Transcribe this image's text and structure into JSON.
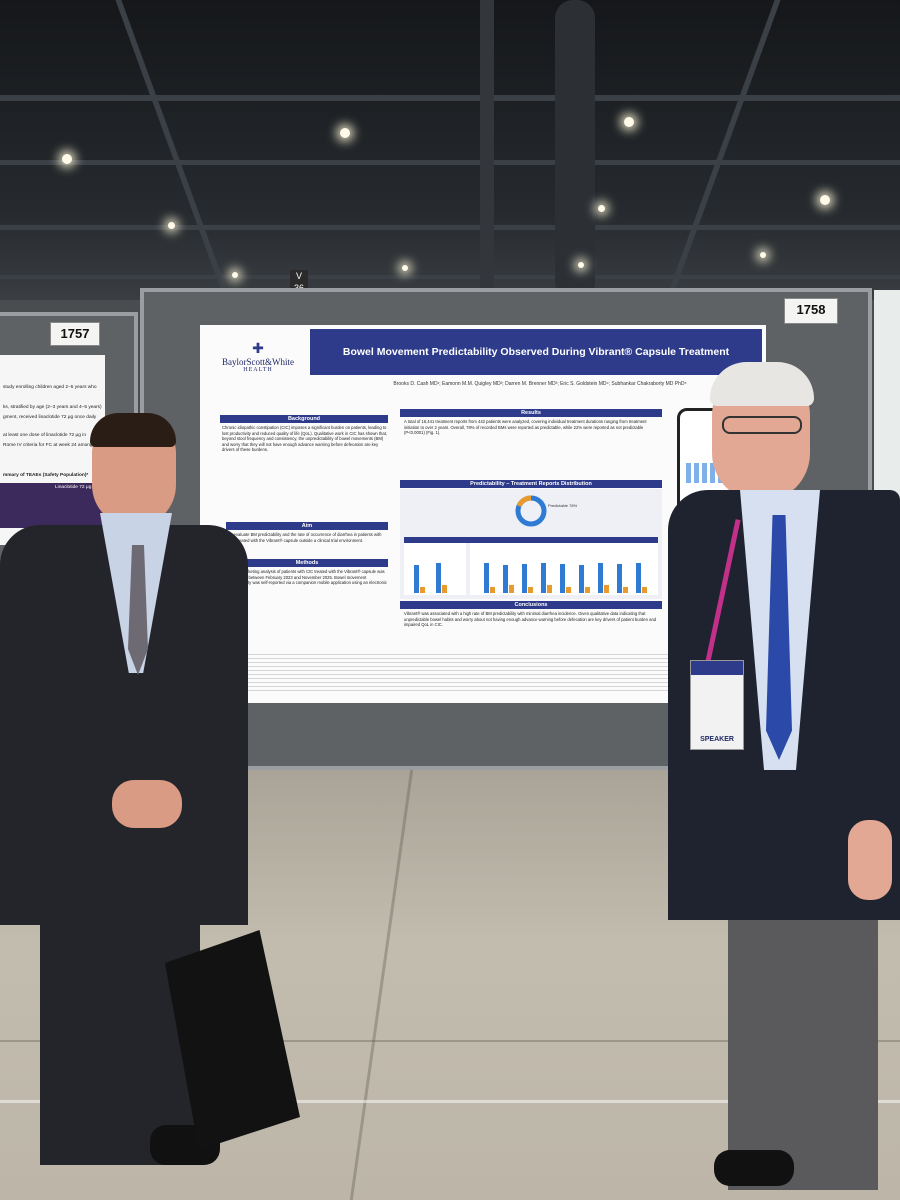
{
  "booth_numbers": {
    "left": "1757",
    "right": "1758"
  },
  "aisle_sign": "V 36",
  "poster": {
    "title": "Bowel Movement Predictability Observed During Vibrant® Capsule Treatment",
    "logo_line1": "BaylorScott&White",
    "logo_line2": "HEALTH",
    "authors": "Brooks D. Cash MD¹; Eamonn M.M. Quigley MD²; Darren M. Brenner MD³; Eric S. Goldstein MD⁴; Subhankar Chakraborty MD PhD⁵",
    "background_heading": "Background",
    "aim_heading": "Aim",
    "methods_heading": "Methods",
    "results_heading": "Results",
    "chart_heading": "Predictability – Treatment Reports Distribution",
    "conclusions_heading": "Conclusions",
    "background_text": "Chronic idiopathic constipation (CIC) imposes a significant burden on patients, leading to lost productivity and reduced quality of life (QoL). Qualitative work in CIC has shown that, beyond stool frequency and consistency, the unpredictability of bowel movements (BM) and worry that they will not have enough advance warning before defecation are key drivers of these burdens.",
    "aim_text": "To evaluate BM predictability and the rate of occurrence of diarrhea in patients with CIC treated with the Vibrant® capsule outside a clinical trial environment.",
    "methods_text": "A post-marketing analysis of patients with CIC treated with the Vibrant® capsule was conducted between February 2023 and November 2025. Bowel movement predictability was self-reported via a companion mobile application using an electronic stool diary.",
    "results_text": "A total of 16,441 treatment reports from 442 patients were analyzed, covering individual treatment durations ranging from treatment initiation to over 2 years. Overall, 78% of recorded BMs were reported as predictable, while 22% were reported as not predictable (P<0.0001) (Fig. 1).",
    "conclusions_text": "Vibrant® was associated with a high rate of BM predictability with minimal diarrhea incidence. Given qualitative data indicating that unpredictable bowel habits and worry about not having enough advance warning before defecation are key drivers of patient burden and impaired QoL in CIC.",
    "donut_label": "Predictable 78%",
    "speaker_badge": "SPEAKER"
  },
  "left_poster_lines": [
    "study enrolling children aged 2–5 years who",
    "ks, stratified by age (2–3 years and 4–5 years)",
    "gment, received linaclotide 72 μg once daily",
    "at least one dose of linaclotide 72 μg in",
    "Rome IV criteria for FC at week 24 among",
    "mmary of TEAEs (Safety Population)*",
    "Linaclotide 72 μg (n = 100)"
  ],
  "colors": {
    "title_bar": "#2e3b8a",
    "bar_blue": "#2f7bd4",
    "bar_orange": "#e89a2c",
    "lanyard": "#c2308a"
  }
}
